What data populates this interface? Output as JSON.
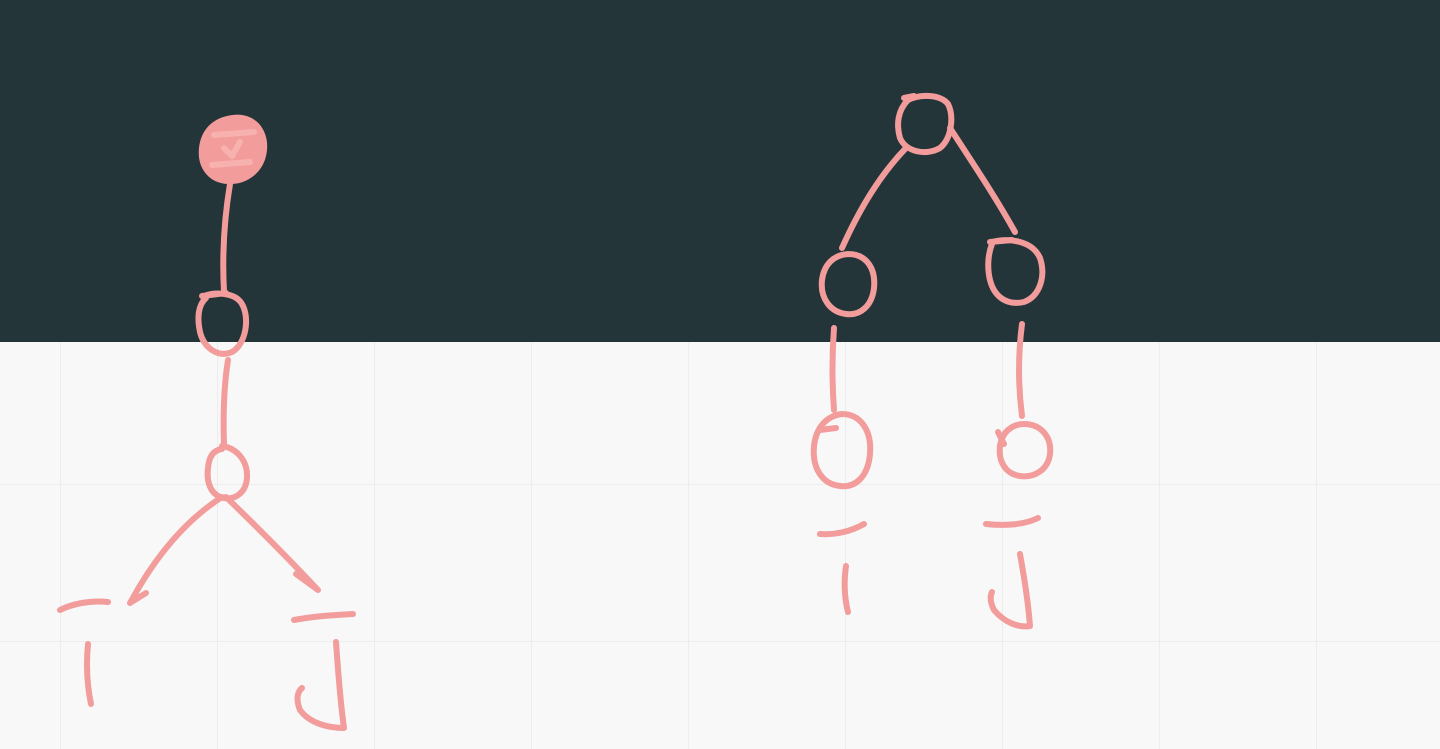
{
  "theme": {
    "dark_band_color": "#24353a",
    "paper_color": "#f8f8f8",
    "grid_color": "#ededed",
    "ink_color": "#f29c9b",
    "ink_highlight": "#f7b2b0"
  },
  "drawings": [
    {
      "name": "left-tree-sketch",
      "nodes": [
        "root-filled",
        "node-2",
        "node-3",
        "leaf-i",
        "leaf-j"
      ],
      "leaf_glyphs": [
        "I",
        "J"
      ]
    },
    {
      "name": "right-tree-sketch",
      "nodes": [
        "root",
        "left-child",
        "right-child",
        "left-grandchild",
        "right-grandchild"
      ],
      "leaf_glyphs": [
        "I",
        "J"
      ]
    }
  ]
}
